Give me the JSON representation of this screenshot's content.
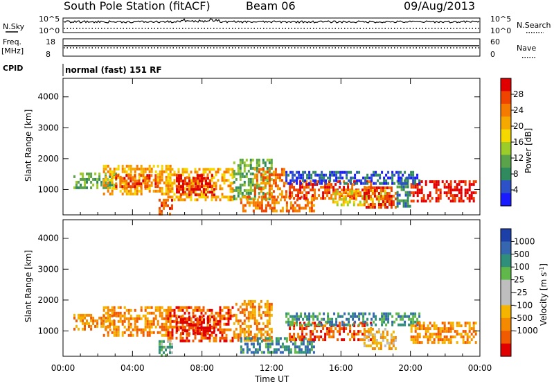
{
  "header": {
    "title": "South Pole Station (fitACF)",
    "beam": "Beam 06",
    "date": "09/Aug/2013"
  },
  "top_panels": {
    "nsky_label": "N.Sky",
    "nsearch_label": "N.Search",
    "nsky_ticks": [
      "10^5",
      "10^0"
    ],
    "nsky_right_ticks": [
      "10^5",
      "10^0"
    ],
    "freq_label": "Freq.",
    "freq_unit": "[MHz]",
    "freq_ticks": [
      "18",
      "8"
    ],
    "nave_label": "Nave",
    "nave_ticks": [
      "60",
      "0"
    ],
    "cpid_label": "CPID",
    "cpid_text": "normal (fast) 151 RF"
  },
  "colors": {
    "power_scale": [
      "#1a1aff",
      "#2d52c8",
      "#2f8a5e",
      "#5aa34a",
      "#9ccc2a",
      "#f5d800",
      "#f5a800",
      "#f57a00",
      "#ee4400",
      "#e00000"
    ],
    "velocity_scale": [
      "#1c3fa8",
      "#3666b0",
      "#2f8f7a",
      "#61b84a",
      "#bebebe",
      "#bebebe",
      "#f5b400",
      "#f58a00",
      "#f05a00",
      "#e00000"
    ]
  },
  "x_axis": {
    "label": "Time UT",
    "ticks": [
      "00:00",
      "04:00",
      "08:00",
      "12:00",
      "16:00",
      "20:00",
      "00:00"
    ]
  },
  "chart_data": [
    {
      "type": "heatmap",
      "title": "Power",
      "ylabel": "Slant Range [km]",
      "xlabel": "",
      "yticks": [
        1000,
        2000,
        3000,
        4000
      ],
      "ylim": [
        180,
        4600
      ],
      "xlim": [
        0,
        24
      ],
      "colorbar": {
        "label": "Power [dB]",
        "ticks": [
          "4",
          "8",
          "12",
          "16",
          "20",
          "24",
          "28"
        ]
      },
      "bands": [
        {
          "x0": 0.6,
          "x1": 3.0,
          "y0": 1050,
          "y1": 1550,
          "level": 3
        },
        {
          "x0": 2.3,
          "x1": 6.2,
          "y0": 900,
          "y1": 1800,
          "level": 6
        },
        {
          "x0": 3.0,
          "x1": 5.5,
          "y0": 1100,
          "y1": 1500,
          "level": 8
        },
        {
          "x0": 6.0,
          "x1": 9.8,
          "y0": 700,
          "y1": 1700,
          "level": 6
        },
        {
          "x0": 6.5,
          "x1": 8.7,
          "y0": 800,
          "y1": 1500,
          "level": 9
        },
        {
          "x0": 5.5,
          "x1": 6.3,
          "y0": 250,
          "y1": 700,
          "level": 8
        },
        {
          "x0": 9.8,
          "x1": 12.0,
          "y0": 700,
          "y1": 2000,
          "level": 3
        },
        {
          "x0": 11.0,
          "x1": 12.8,
          "y0": 800,
          "y1": 1700,
          "level": 7
        },
        {
          "x0": 10.2,
          "x1": 14.5,
          "y0": 280,
          "y1": 800,
          "level": 7
        },
        {
          "x0": 13.0,
          "x1": 17.7,
          "y0": 700,
          "y1": 1300,
          "level": 8
        },
        {
          "x0": 15.5,
          "x1": 18.5,
          "y0": 500,
          "y1": 1000,
          "level": 5
        },
        {
          "x0": 17.3,
          "x1": 19.2,
          "y0": 400,
          "y1": 1100,
          "level": 8
        },
        {
          "x0": 19.2,
          "x1": 20.0,
          "y0": 500,
          "y1": 1400,
          "level": 2
        },
        {
          "x0": 20.0,
          "x1": 23.8,
          "y0": 650,
          "y1": 1300,
          "level": 9
        },
        {
          "x0": 12.8,
          "x1": 20.5,
          "y0": 1200,
          "y1": 1600,
          "level": 1
        }
      ]
    },
    {
      "type": "heatmap",
      "title": "Velocity",
      "ylabel": "Slant Range [km]",
      "xlabel": "Time UT",
      "yticks": [
        1000,
        2000,
        3000,
        4000
      ],
      "ylim": [
        180,
        4600
      ],
      "xlim": [
        0,
        24
      ],
      "colorbar": {
        "label": "Velocity [m s^-1]",
        "ticks": [
          "1000",
          "500",
          "100",
          "25",
          "-25",
          "-100",
          "-500",
          "-1000"
        ]
      },
      "bands": [
        {
          "x0": 0.6,
          "x1": 3.0,
          "y0": 1050,
          "y1": 1550,
          "level": 7
        },
        {
          "x0": 2.3,
          "x1": 6.2,
          "y0": 900,
          "y1": 1800,
          "level": 7
        },
        {
          "x0": 6.0,
          "x1": 9.8,
          "y0": 700,
          "y1": 1800,
          "level": 8
        },
        {
          "x0": 6.5,
          "x1": 8.7,
          "y0": 900,
          "y1": 1500,
          "level": 9
        },
        {
          "x0": 9.8,
          "x1": 12.0,
          "y0": 700,
          "y1": 2000,
          "level": 7
        },
        {
          "x0": 10.2,
          "x1": 14.5,
          "y0": 280,
          "y1": 800,
          "level": 2
        },
        {
          "x0": 13.0,
          "x1": 17.7,
          "y0": 700,
          "y1": 1300,
          "level": 8
        },
        {
          "x0": 12.8,
          "x1": 20.5,
          "y0": 1200,
          "y1": 1600,
          "level": 2
        },
        {
          "x0": 17.3,
          "x1": 19.2,
          "y0": 400,
          "y1": 1100,
          "level": 6
        },
        {
          "x0": 20.0,
          "x1": 23.8,
          "y0": 650,
          "y1": 1300,
          "level": 7
        },
        {
          "x0": 5.5,
          "x1": 6.3,
          "y0": 250,
          "y1": 700,
          "level": 3
        }
      ]
    }
  ]
}
